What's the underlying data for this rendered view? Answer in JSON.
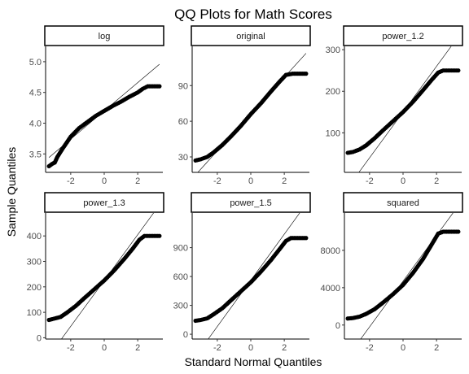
{
  "figure": {
    "title": "QQ Plots for Math Scores",
    "xlabel": "Standard Normal Quantiles",
    "ylabel": "Sample Quantiles"
  },
  "chart_data": [
    {
      "type": "scatter",
      "panel": "log",
      "xlim": [
        -3.5,
        3.5
      ],
      "ylim": [
        3.2,
        5.25
      ],
      "xticks": [
        -2,
        0,
        2
      ],
      "yticks": [
        3.5,
        4.0,
        4.5,
        5.0
      ],
      "ytick_labels": [
        "3.5",
        "4.0",
        "4.5",
        "5.0"
      ],
      "reference_line": {
        "intercept": 4.2,
        "slope": 0.23
      },
      "points": [
        {
          "x": -3.3,
          "y": 3.3
        },
        {
          "x": -3.1,
          "y": 3.34
        },
        {
          "x": -2.95,
          "y": 3.36
        },
        {
          "x": -2.8,
          "y": 3.45
        },
        {
          "x": -2.5,
          "y": 3.58
        },
        {
          "x": -2.0,
          "y": 3.78
        },
        {
          "x": -1.5,
          "y": 3.92
        },
        {
          "x": -1.0,
          "y": 4.02
        },
        {
          "x": -0.5,
          "y": 4.12
        },
        {
          "x": 0.0,
          "y": 4.2
        },
        {
          "x": 0.5,
          "y": 4.28
        },
        {
          "x": 1.0,
          "y": 4.35
        },
        {
          "x": 1.5,
          "y": 4.43
        },
        {
          "x": 2.0,
          "y": 4.5
        },
        {
          "x": 2.3,
          "y": 4.56
        },
        {
          "x": 2.6,
          "y": 4.6
        },
        {
          "x": 3.0,
          "y": 4.6
        },
        {
          "x": 3.3,
          "y": 4.6
        }
      ]
    },
    {
      "type": "scatter",
      "panel": "original",
      "xlim": [
        -3.5,
        3.5
      ],
      "ylim": [
        17,
        123
      ],
      "xticks": [
        -2,
        0,
        2
      ],
      "yticks": [
        30,
        60,
        90
      ],
      "ytick_labels": [
        "30",
        "60",
        "90"
      ],
      "reference_line": {
        "intercept": 66,
        "slope": 15.5
      },
      "points": [
        {
          "x": -3.3,
          "y": 27
        },
        {
          "x": -3.0,
          "y": 28
        },
        {
          "x": -2.6,
          "y": 30
        },
        {
          "x": -2.2,
          "y": 34
        },
        {
          "x": -1.7,
          "y": 40
        },
        {
          "x": -1.2,
          "y": 47
        },
        {
          "x": -0.6,
          "y": 56
        },
        {
          "x": 0.0,
          "y": 66
        },
        {
          "x": 0.6,
          "y": 75
        },
        {
          "x": 1.2,
          "y": 85
        },
        {
          "x": 1.7,
          "y": 93
        },
        {
          "x": 2.1,
          "y": 99
        },
        {
          "x": 2.5,
          "y": 100
        },
        {
          "x": 3.0,
          "y": 100
        },
        {
          "x": 3.3,
          "y": 100
        }
      ]
    },
    {
      "type": "scatter",
      "panel": "power_1.2",
      "xlim": [
        -3.5,
        3.5
      ],
      "ylim": [
        5,
        308
      ],
      "xticks": [
        -2,
        0,
        2
      ],
      "yticks": [
        100,
        200,
        300
      ],
      "ytick_labels": [
        "100",
        "200",
        "300"
      ],
      "reference_line": {
        "intercept": 150,
        "slope": 55
      },
      "points": [
        {
          "x": -3.3,
          "y": 52
        },
        {
          "x": -3.0,
          "y": 54
        },
        {
          "x": -2.6,
          "y": 60
        },
        {
          "x": -2.2,
          "y": 70
        },
        {
          "x": -1.7,
          "y": 87
        },
        {
          "x": -1.2,
          "y": 106
        },
        {
          "x": -0.6,
          "y": 128
        },
        {
          "x": 0.0,
          "y": 150
        },
        {
          "x": 0.6,
          "y": 175
        },
        {
          "x": 1.2,
          "y": 203
        },
        {
          "x": 1.7,
          "y": 227
        },
        {
          "x": 2.1,
          "y": 245
        },
        {
          "x": 2.4,
          "y": 250
        },
        {
          "x": 3.0,
          "y": 250
        },
        {
          "x": 3.3,
          "y": 250
        }
      ]
    },
    {
      "type": "scatter",
      "panel": "power_1.3",
      "xlim": [
        -3.5,
        3.5
      ],
      "ylim": [
        -5,
        490
      ],
      "xticks": [
        -2,
        0,
        2
      ],
      "yticks": [
        0,
        100,
        200,
        300,
        400
      ],
      "ytick_labels": [
        "0",
        "100",
        "200",
        "300",
        "400"
      ],
      "reference_line": {
        "intercept": 225,
        "slope": 90
      },
      "points": [
        {
          "x": -3.3,
          "y": 70
        },
        {
          "x": -3.0,
          "y": 75
        },
        {
          "x": -2.6,
          "y": 82
        },
        {
          "x": -2.2,
          "y": 100
        },
        {
          "x": -1.7,
          "y": 125
        },
        {
          "x": -1.2,
          "y": 155
        },
        {
          "x": -0.6,
          "y": 190
        },
        {
          "x": 0.0,
          "y": 225
        },
        {
          "x": 0.6,
          "y": 265
        },
        {
          "x": 1.2,
          "y": 310
        },
        {
          "x": 1.7,
          "y": 350
        },
        {
          "x": 2.1,
          "y": 385
        },
        {
          "x": 2.4,
          "y": 400
        },
        {
          "x": 3.0,
          "y": 400
        },
        {
          "x": 3.3,
          "y": 400
        }
      ]
    },
    {
      "type": "scatter",
      "panel": "power_1.5",
      "xlim": [
        -3.5,
        3.5
      ],
      "ylim": [
        -50,
        1260
      ],
      "xticks": [
        -2,
        0,
        2
      ],
      "yticks": [
        0,
        300,
        600,
        900
      ],
      "ytick_labels": [
        "0",
        "300",
        "600",
        "900"
      ],
      "reference_line": {
        "intercept": 560,
        "slope": 240
      },
      "points": [
        {
          "x": -3.3,
          "y": 140
        },
        {
          "x": -3.0,
          "y": 148
        },
        {
          "x": -2.6,
          "y": 165
        },
        {
          "x": -2.2,
          "y": 210
        },
        {
          "x": -1.7,
          "y": 270
        },
        {
          "x": -1.2,
          "y": 350
        },
        {
          "x": -0.6,
          "y": 445
        },
        {
          "x": 0.0,
          "y": 540
        },
        {
          "x": 0.6,
          "y": 650
        },
        {
          "x": 1.2,
          "y": 770
        },
        {
          "x": 1.7,
          "y": 880
        },
        {
          "x": 2.1,
          "y": 970
        },
        {
          "x": 2.4,
          "y": 1000
        },
        {
          "x": 3.0,
          "y": 1000
        },
        {
          "x": 3.3,
          "y": 1000
        }
      ]
    },
    {
      "type": "scatter",
      "panel": "squared",
      "xlim": [
        -3.5,
        3.5
      ],
      "ylim": [
        -1500,
        12000
      ],
      "xticks": [
        -2,
        0,
        2
      ],
      "yticks": [
        0,
        4000,
        8000
      ],
      "ytick_labels": [
        "0",
        "4000",
        "8000"
      ],
      "reference_line": {
        "intercept": 4700,
        "slope": 2450
      },
      "points": [
        {
          "x": -3.3,
          "y": 700
        },
        {
          "x": -3.0,
          "y": 750
        },
        {
          "x": -2.6,
          "y": 900
        },
        {
          "x": -2.2,
          "y": 1200
        },
        {
          "x": -1.7,
          "y": 1700
        },
        {
          "x": -1.2,
          "y": 2400
        },
        {
          "x": -0.6,
          "y": 3300
        },
        {
          "x": 0.0,
          "y": 4300
        },
        {
          "x": 0.6,
          "y": 5600
        },
        {
          "x": 1.2,
          "y": 7100
        },
        {
          "x": 1.7,
          "y": 8600
        },
        {
          "x": 2.1,
          "y": 9800
        },
        {
          "x": 2.4,
          "y": 10000
        },
        {
          "x": 3.0,
          "y": 10000
        },
        {
          "x": 3.3,
          "y": 10000
        }
      ]
    }
  ]
}
